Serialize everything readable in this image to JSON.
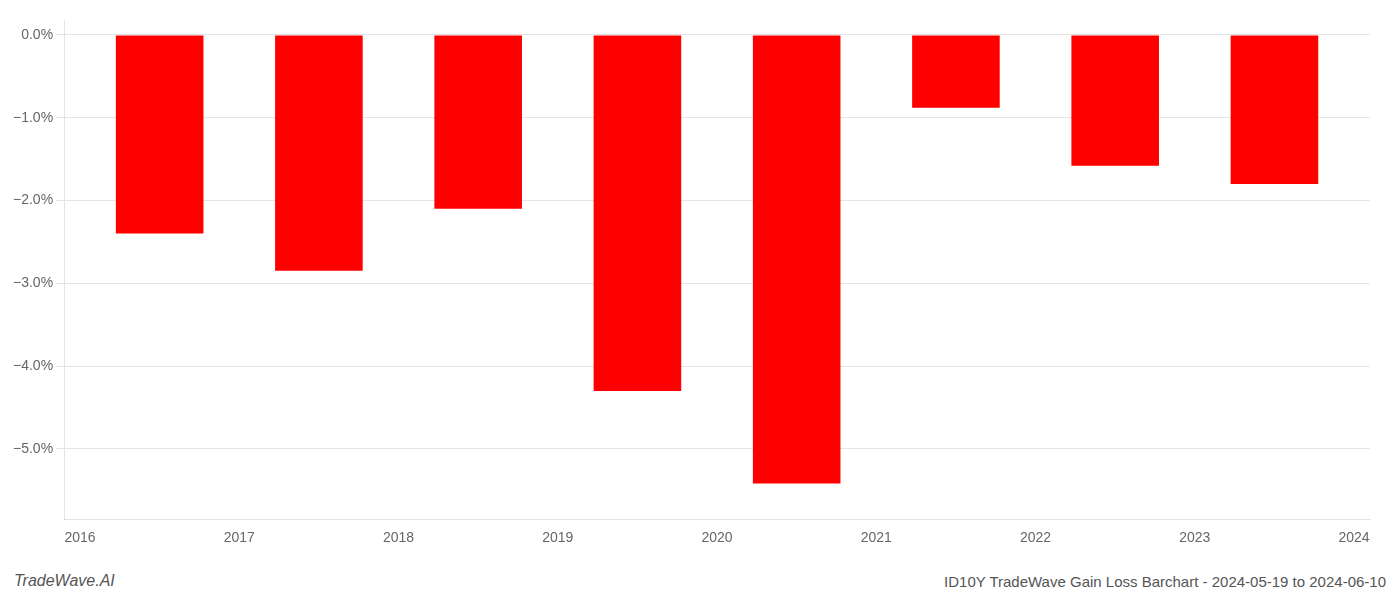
{
  "chart_data": {
    "type": "bar",
    "x": [
      2016.5,
      2017.5,
      2018.5,
      2019.5,
      2020.5,
      2021.5,
      2022.5,
      2023.5
    ],
    "values": [
      -2.4,
      -2.85,
      -2.1,
      -4.3,
      -5.42,
      -0.88,
      -1.58,
      -1.8
    ],
    "color": "#ff0000",
    "xlim": [
      2015.9,
      2024.1
    ],
    "xticks": [
      2016,
      2017,
      2018,
      2019,
      2020,
      2021,
      2022,
      2023,
      2024
    ],
    "ylim": [
      -5.85,
      0.18
    ],
    "yticks": [
      {
        "value": 0.0,
        "label": "0.0%"
      },
      {
        "value": -1.0,
        "label": "−1.0%"
      },
      {
        "value": -2.0,
        "label": "−2.0%"
      },
      {
        "value": -3.0,
        "label": "−3.0%"
      },
      {
        "value": -4.0,
        "label": "−4.0%"
      },
      {
        "value": -5.0,
        "label": "−5.0%"
      }
    ],
    "grid": true,
    "annotations": [
      "TradeWave.AI",
      "ID10Y TradeWave Gain Loss Barchart - 2024-05-19 to 2024-06-10"
    ]
  }
}
